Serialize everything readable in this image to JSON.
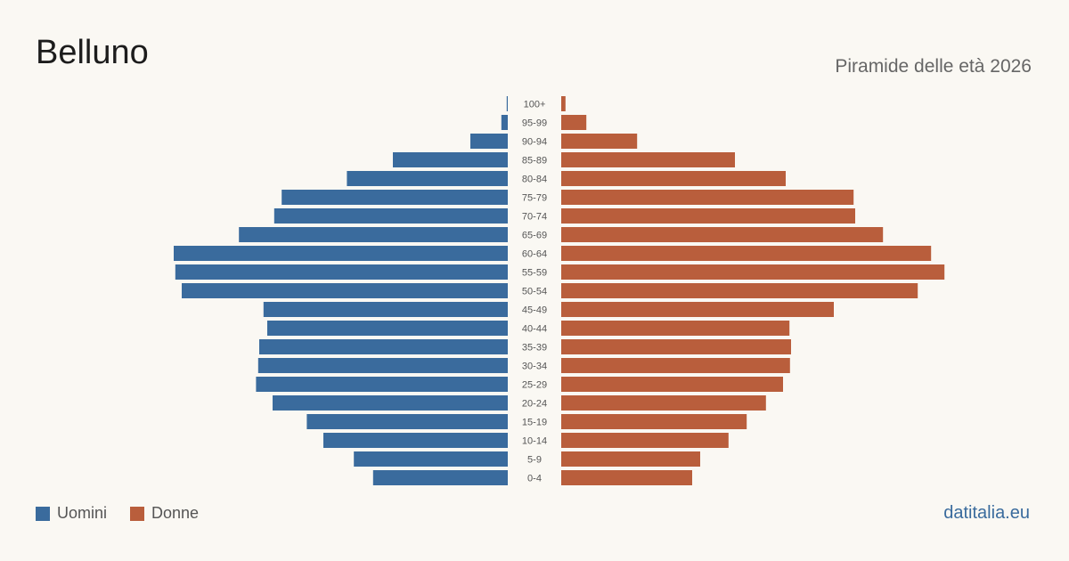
{
  "header": {
    "title": "Belluno",
    "subtitle": "Piramide delle età 2026"
  },
  "footer": {
    "brand": "datitalia.eu"
  },
  "colors": {
    "men": "#3a6b9d",
    "women": "#b95e3c",
    "background": "#faf8f3"
  },
  "chart_data": {
    "type": "bar",
    "orientation": "horizontal-butterfly",
    "categories": [
      "100+",
      "95-99",
      "90-94",
      "85-89",
      "80-84",
      "75-79",
      "70-74",
      "65-69",
      "60-64",
      "55-59",
      "50-54",
      "45-49",
      "40-44",
      "35-39",
      "30-34",
      "25-29",
      "20-24",
      "15-19",
      "10-14",
      "5-9",
      "0-4"
    ],
    "series": [
      {
        "name": "Uomini",
        "color": "#3a6b9d",
        "values": [
          0.2,
          1.2,
          7,
          21.5,
          30.1,
          42.3,
          43.7,
          50.3,
          62.5,
          62.2,
          61.0,
          45.7,
          45.0,
          46.5,
          46.7,
          47.1,
          44.0,
          37.6,
          34.5,
          28.8,
          25.2
        ]
      },
      {
        "name": "Donne",
        "color": "#b95e3c",
        "values": [
          0.8,
          4.7,
          14.2,
          32.5,
          42.0,
          54.7,
          55.0,
          60.2,
          69.2,
          71.7,
          66.7,
          51.0,
          42.7,
          43.0,
          42.8,
          41.5,
          38.3,
          34.7,
          31.3,
          26.0,
          24.5
        ]
      }
    ],
    "legend_position": "bottom-left",
    "grid": false
  }
}
